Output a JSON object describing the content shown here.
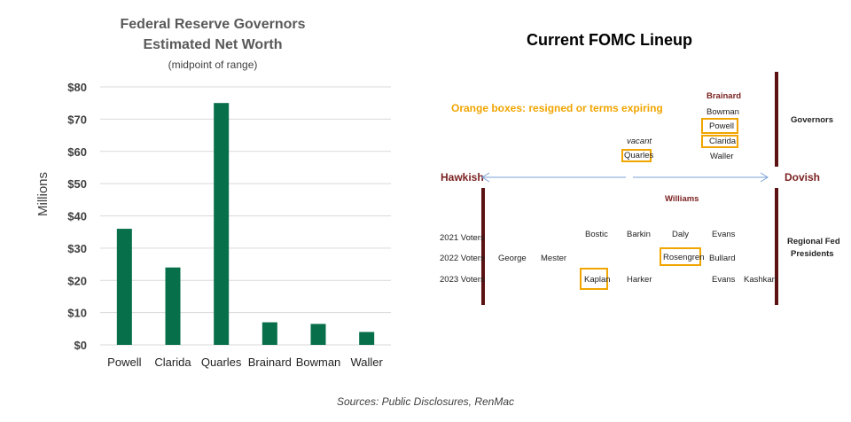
{
  "left_chart": {
    "title_line1": "Federal Reserve Governors",
    "title_line2": "Estimated Net Worth",
    "subtitle": "(midpoint of range)",
    "ylabel": "Millions"
  },
  "chart_data": [
    {
      "type": "bar",
      "title": "Federal Reserve Governors Estimated Net Worth",
      "subtitle": "(midpoint of range)",
      "ylabel": "Millions",
      "categories": [
        "Powell",
        "Clarida",
        "Quarles",
        "Brainard",
        "Bowman",
        "Waller"
      ],
      "values": [
        36,
        24,
        75,
        7,
        6.5,
        4
      ],
      "ylim": [
        0,
        80
      ],
      "yticks": [
        0,
        10,
        20,
        30,
        40,
        50,
        60,
        70,
        80
      ],
      "ytick_labels": [
        "$0",
        "$10",
        "$20",
        "$30",
        "$40",
        "$50",
        "$60",
        "$70",
        "$80"
      ],
      "bar_color": "#07704a",
      "grid": true
    }
  ],
  "fomc": {
    "title": "Current FOMC Lineup",
    "legend_note": "Orange boxes: resigned or terms expiring",
    "hawkish": "Hawkish",
    "dovish": "Dovish",
    "governors_label": "Governors",
    "regional_label_line1": "Regional Fed",
    "regional_label_line2": "Presidents",
    "governors": {
      "brainard": "Brainard",
      "bowman": "Bowman",
      "powell": "Powell",
      "clarida": "Clarida",
      "waller": "Waller",
      "vacant": "vacant",
      "quarles": "Quarles"
    },
    "williams": "Williams",
    "voter_rows": [
      "2021 Voters",
      "2022 Voters",
      "2023 Voters"
    ],
    "presidents": {
      "bostic": "Bostic",
      "barkin": "Barkin",
      "daly": "Daly",
      "evans_2021": "Evans",
      "george": "George",
      "mester": "Mester",
      "rosengren": "Rosengren",
      "bullard": "Bullard",
      "kaplan": "Kaplan",
      "harker": "Harker",
      "evans_2023": "Evans",
      "kashkari": "Kashkari"
    },
    "box_color": "#f0a500",
    "bar_color": "#5c1212"
  },
  "source": "Sources: Public Disclosures, RenMac"
}
